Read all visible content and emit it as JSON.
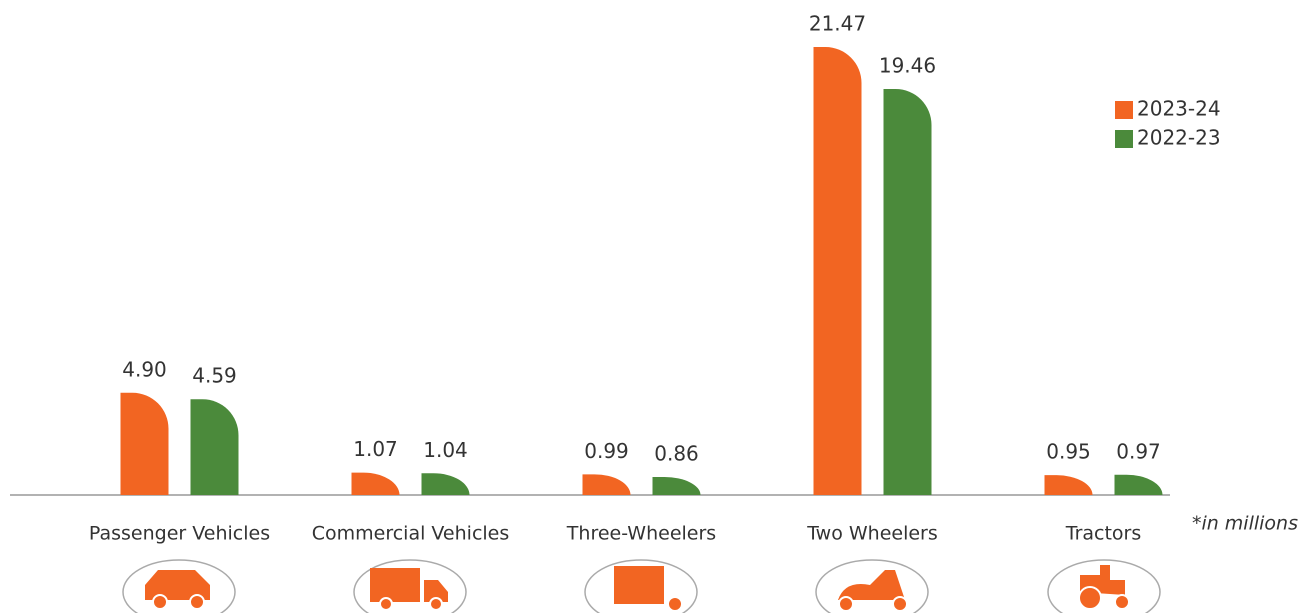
{
  "chart_data": {
    "type": "bar",
    "categories": [
      "Passenger Vehicles",
      "Commercial Vehicles",
      "Three-Wheelers",
      "Two Wheelers",
      "Tractors"
    ],
    "series": [
      {
        "name": "2023-24",
        "color": "#f26522",
        "values": [
          4.9,
          1.07,
          0.99,
          21.47,
          0.95
        ],
        "value_labels": [
          "4.90",
          "1.07",
          "0.99",
          "21.47",
          "0.95"
        ]
      },
      {
        "name": "2022-23",
        "color": "#4b8a3b",
        "values": [
          4.59,
          1.04,
          0.86,
          19.46,
          0.97
        ],
        "value_labels": [
          "4.59",
          "1.04",
          "0.86",
          "19.46",
          "0.97"
        ]
      }
    ],
    "ylim": [
      0,
      22
    ],
    "legend": "upper right",
    "note": "*in millions"
  }
}
